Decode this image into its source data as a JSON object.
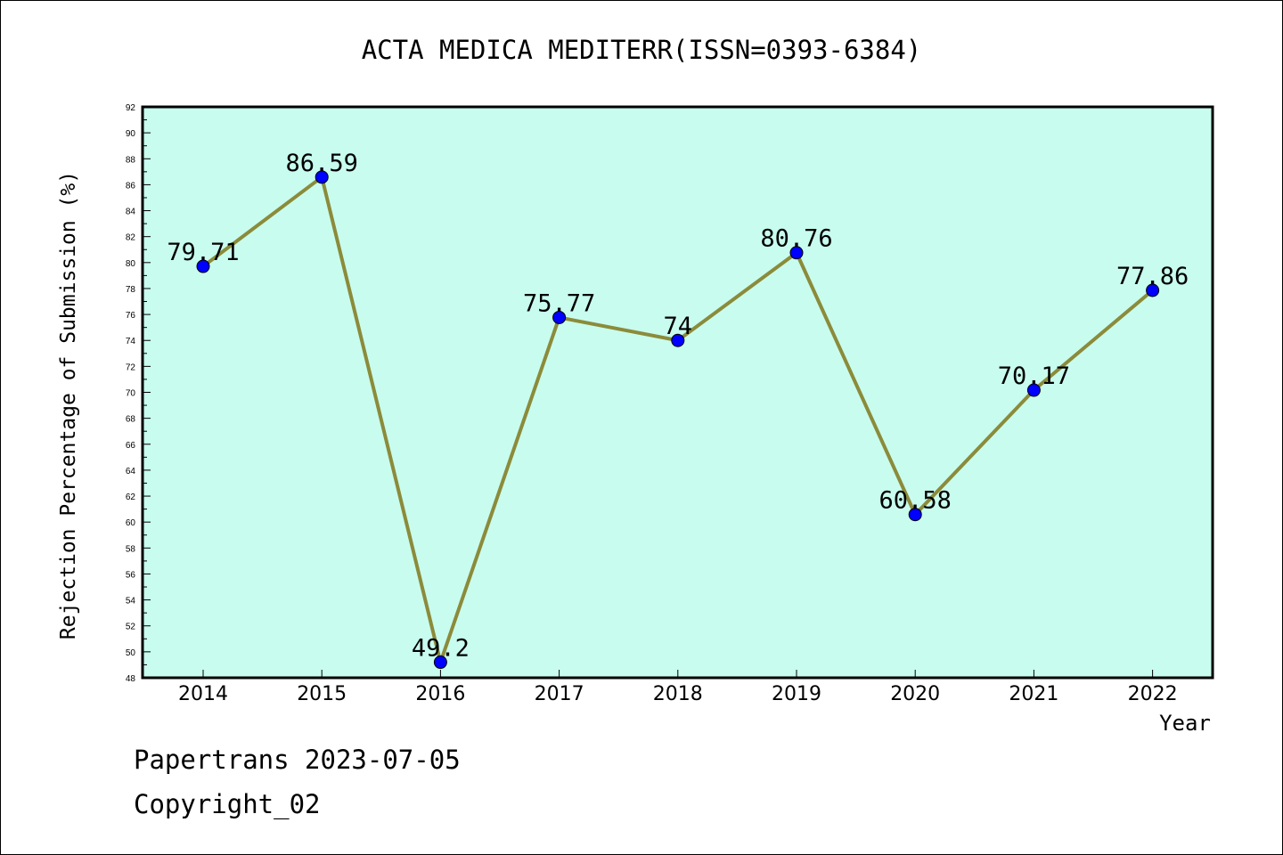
{
  "footer": {
    "line1": "Papertrans 2023-07-05",
    "line2": "Copyright_02"
  },
  "chart_data": {
    "type": "line",
    "title": "ACTA MEDICA MEDITERR(ISSN=0393-6384)",
    "xlabel": "Year",
    "ylabel": "Rejection Percentage of Submission (%)",
    "categories": [
      "2014",
      "2015",
      "2016",
      "2017",
      "2018",
      "2019",
      "2020",
      "2021",
      "2022"
    ],
    "series": [
      {
        "values": [
          79.71,
          86.59,
          49.2,
          75.77,
          74,
          80.76,
          60.58,
          70.17,
          77.86
        ],
        "labels": [
          "79.71",
          "86.59",
          "49.2",
          "75.77",
          "74",
          "80.76",
          "60.58",
          "70.17",
          "77.86"
        ]
      }
    ],
    "ylim": [
      48,
      92
    ],
    "ytick_step": 2,
    "grid": false,
    "colors": {
      "plot_background": "#c8fcef",
      "line": "#8b8b3a",
      "marker": "#0000ff"
    }
  }
}
